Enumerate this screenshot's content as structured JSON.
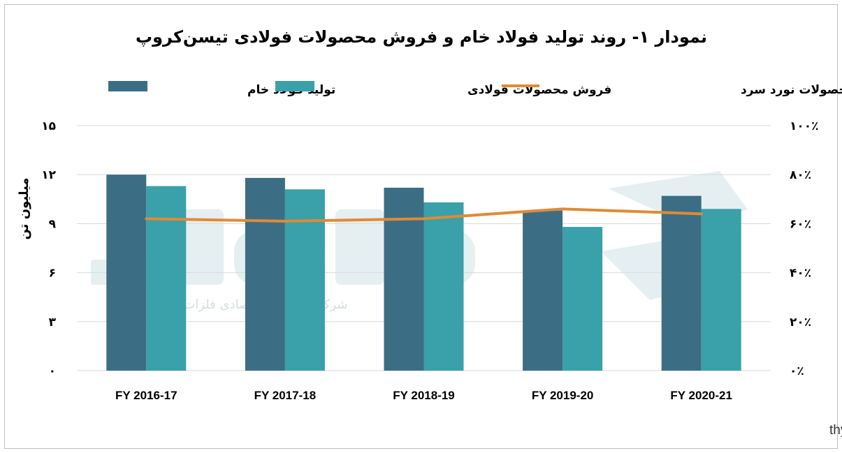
{
  "chart_data": {
    "type": "bar",
    "title": "نمودار ۱- روند تولید فولاد خام و فروش محصولات فولادی تیسن‌کروپ",
    "ylabel": "میلیون تن",
    "categories": [
      "FY 2016-17",
      "FY 2017-18",
      "FY 2018-19",
      "FY 2019-20",
      "FY 2020-21"
    ],
    "series": [
      {
        "name": "تولید فولاد خام",
        "type": "bar",
        "axis": "left",
        "color": "#3b6e85",
        "values": [
          12.0,
          11.8,
          11.2,
          9.8,
          10.7
        ]
      },
      {
        "name": "فروش محصولات فولادی",
        "type": "bar",
        "axis": "left",
        "color": "#3aa0a9",
        "values": [
          11.3,
          11.1,
          10.3,
          8.8,
          9.9
        ]
      },
      {
        "name": "سهم فروش محصولات نورد سرد",
        "type": "line",
        "axis": "right",
        "color": "#e08a35",
        "values": [
          62.0,
          61.0,
          62.0,
          66.0,
          64.0
        ]
      }
    ],
    "ylim": [
      0,
      15
    ],
    "yticks": [
      "۰",
      "۳",
      "۶",
      "۹",
      "۱۲",
      "۱۵"
    ],
    "yticks_values": [
      0,
      3,
      6,
      9,
      12,
      15
    ],
    "y2lim": [
      0,
      100
    ],
    "y2ticks": [
      "۰٪",
      "۲۰٪",
      "۴۰٪",
      "۶۰٪",
      "۸۰٪",
      "۱۰۰٪"
    ],
    "y2ticks_values": [
      0,
      20,
      40,
      60,
      80,
      100
    ],
    "grid": true,
    "legend": "top"
  },
  "source_text": "منبع: thyssenkrupp",
  "watermark_text": "شرکت مشاوره اقتصادی فلزات و مواد آرمان"
}
